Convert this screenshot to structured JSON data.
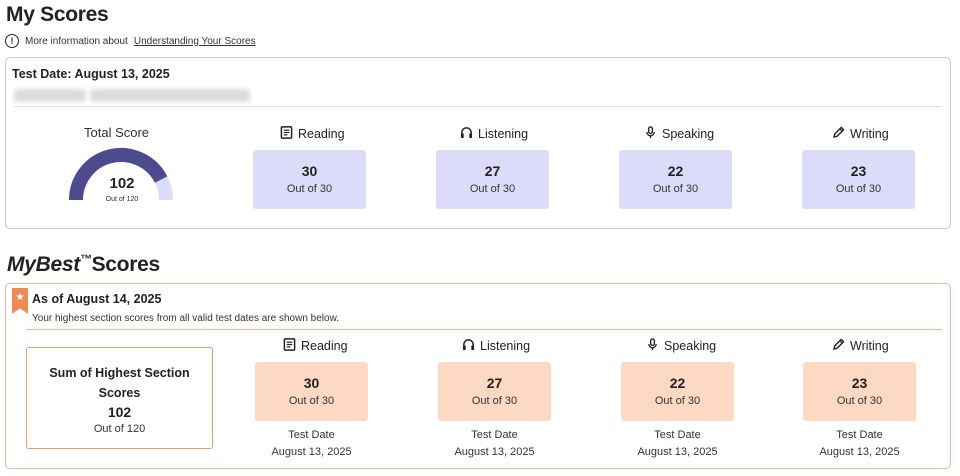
{
  "my_scores": {
    "title": "My Scores",
    "info_text": "More information about",
    "info_link": "Understanding Your Scores",
    "test_date": "Test Date: August 13, 2025",
    "total": {
      "label": "Total Score",
      "value": "102",
      "out_of": "Out of 120",
      "fraction": 0.85
    },
    "sections": [
      {
        "name": "Reading",
        "icon": "book-icon",
        "score": "30",
        "out_of": "Out of 30"
      },
      {
        "name": "Listening",
        "icon": "headphones-icon",
        "score": "27",
        "out_of": "Out of 30"
      },
      {
        "name": "Speaking",
        "icon": "microphone-icon",
        "score": "22",
        "out_of": "Out of 30"
      },
      {
        "name": "Writing",
        "icon": "pencil-icon",
        "score": "23",
        "out_of": "Out of 30"
      }
    ]
  },
  "mybest": {
    "title_italic": "MyBest",
    "trademark": "™",
    "title_rest": "Scores",
    "as_of": "As of August 14, 2025",
    "subtitle": "Your highest section scores from all valid test dates are shown below.",
    "sum": {
      "title": "Sum of Highest Section Scores",
      "value": "102",
      "out_of": "Out of 120"
    },
    "sections": [
      {
        "name": "Reading",
        "icon": "book-icon",
        "score": "30",
        "out_of": "Out of 30",
        "date_label": "Test Date",
        "date": "August 13, 2025"
      },
      {
        "name": "Listening",
        "icon": "headphones-icon",
        "score": "27",
        "out_of": "Out of 30",
        "date_label": "Test Date",
        "date": "August 13, 2025"
      },
      {
        "name": "Speaking",
        "icon": "microphone-icon",
        "score": "22",
        "out_of": "Out of 30",
        "date_label": "Test Date",
        "date": "August 13, 2025"
      },
      {
        "name": "Writing",
        "icon": "pencil-icon",
        "score": "23",
        "out_of": "Out of 30",
        "date_label": "Test Date",
        "date": "August 13, 2025"
      }
    ]
  },
  "colors": {
    "gauge_fill": "#4e4a8e",
    "gauge_track": "#dcdcfa",
    "score_box_blue": "#dcdcfa",
    "score_box_peach": "#fdd9c3",
    "accent_orange": "#f08a55"
  }
}
